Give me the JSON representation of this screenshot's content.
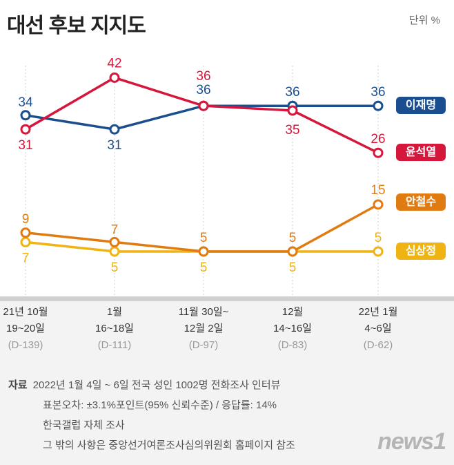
{
  "title": "대선 후보 지지도",
  "unit": "단위 %",
  "chart_data": {
    "type": "line",
    "categories": [
      {
        "line1": "21년 10월",
        "line2": "19~20일",
        "dday": "(D-139)"
      },
      {
        "line1": "1월",
        "line2": "16~18일",
        "dday": "(D-111)"
      },
      {
        "line1": "11월 30일~",
        "line2": "12월 2일",
        "dday": "(D-97)"
      },
      {
        "line1": "12월",
        "line2": "14~16일",
        "dday": "(D-83)"
      },
      {
        "line1": "22년 1월",
        "line2": "4~6일",
        "dday": "(D-62)"
      }
    ],
    "series": [
      {
        "name": "이재명",
        "color": "#1b4e8f",
        "values": [
          34,
          31,
          36,
          36,
          36
        ]
      },
      {
        "name": "윤석열",
        "color": "#d5173c",
        "values": [
          31,
          42,
          36,
          35,
          26
        ]
      },
      {
        "name": "안철수",
        "color": "#e07b12",
        "values": [
          9,
          7,
          5,
          5,
          15
        ]
      },
      {
        "name": "심상정",
        "color": "#f0b412",
        "values": [
          7,
          5,
          5,
          5,
          5
        ]
      }
    ],
    "grid": "vertical dotted",
    "legend": "right"
  },
  "source": {
    "label": "자료",
    "lines": [
      "2022년 1월 4일 ~ 6일 전국 성인 1002명 전화조사 인터뷰",
      "표본오차: ±3.1%포인트(95% 신뢰수준) / 응답률: 14%",
      "한국갤럽 자체 조사",
      "그 밖의 사항은 중앙선거여론조사심의위원회 홈페이지 참조"
    ]
  },
  "logo": "news1"
}
